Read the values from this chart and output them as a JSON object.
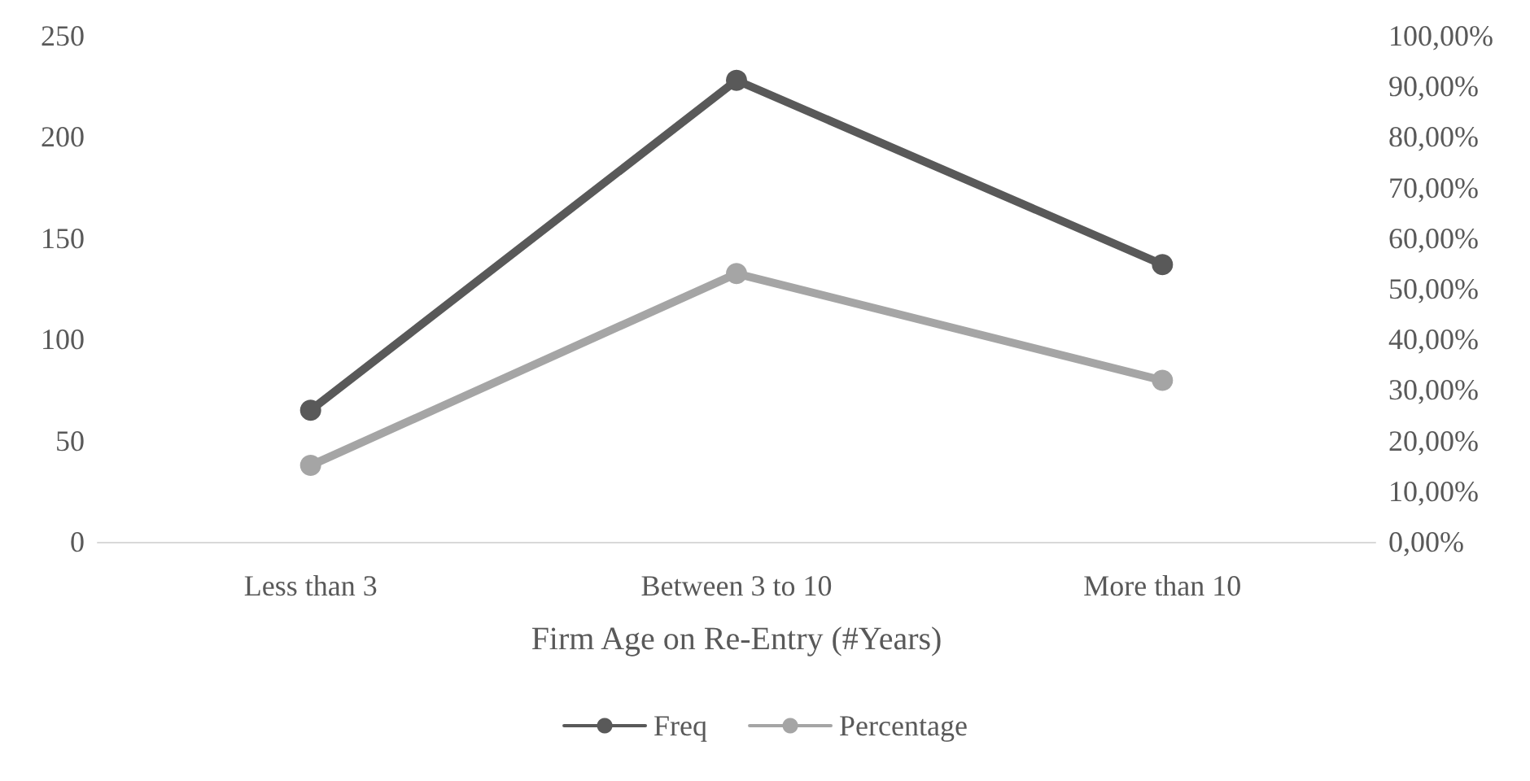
{
  "chart_data": {
    "type": "line",
    "xlabel": "Firm Age on Re-Entry (#Years)",
    "categories": [
      "Less than 3",
      "Between 3 to 10",
      "More than 10"
    ],
    "series": [
      {
        "name": "Freq",
        "color": "#595959",
        "values": [
          65,
          228,
          137
        ]
      },
      {
        "name": "Percentage",
        "color": "#a5a5a5",
        "values": [
          15.1,
          53.0,
          31.9
        ],
        "axis": "y2"
      }
    ],
    "ylim": [
      0,
      250
    ],
    "yticks": [
      0,
      50,
      100,
      150,
      200,
      250
    ],
    "y2lim": [
      0,
      100
    ],
    "y2ticks": [
      {
        "value": 0,
        "label": "0,00%"
      },
      {
        "value": 10,
        "label": "10,00%"
      },
      {
        "value": 20,
        "label": "20,00%"
      },
      {
        "value": 30,
        "label": "30,00%"
      },
      {
        "value": 40,
        "label": "40,00%"
      },
      {
        "value": 50,
        "label": "50,00%"
      },
      {
        "value": 60,
        "label": "60,00%"
      },
      {
        "value": 70,
        "label": "70,00%"
      },
      {
        "value": 80,
        "label": "80,00%"
      },
      {
        "value": 90,
        "label": "90,00%"
      },
      {
        "value": 100,
        "label": "100,00%"
      }
    ],
    "grid": false,
    "legend": "bottom",
    "marker": "circle",
    "line_style": "solid"
  }
}
